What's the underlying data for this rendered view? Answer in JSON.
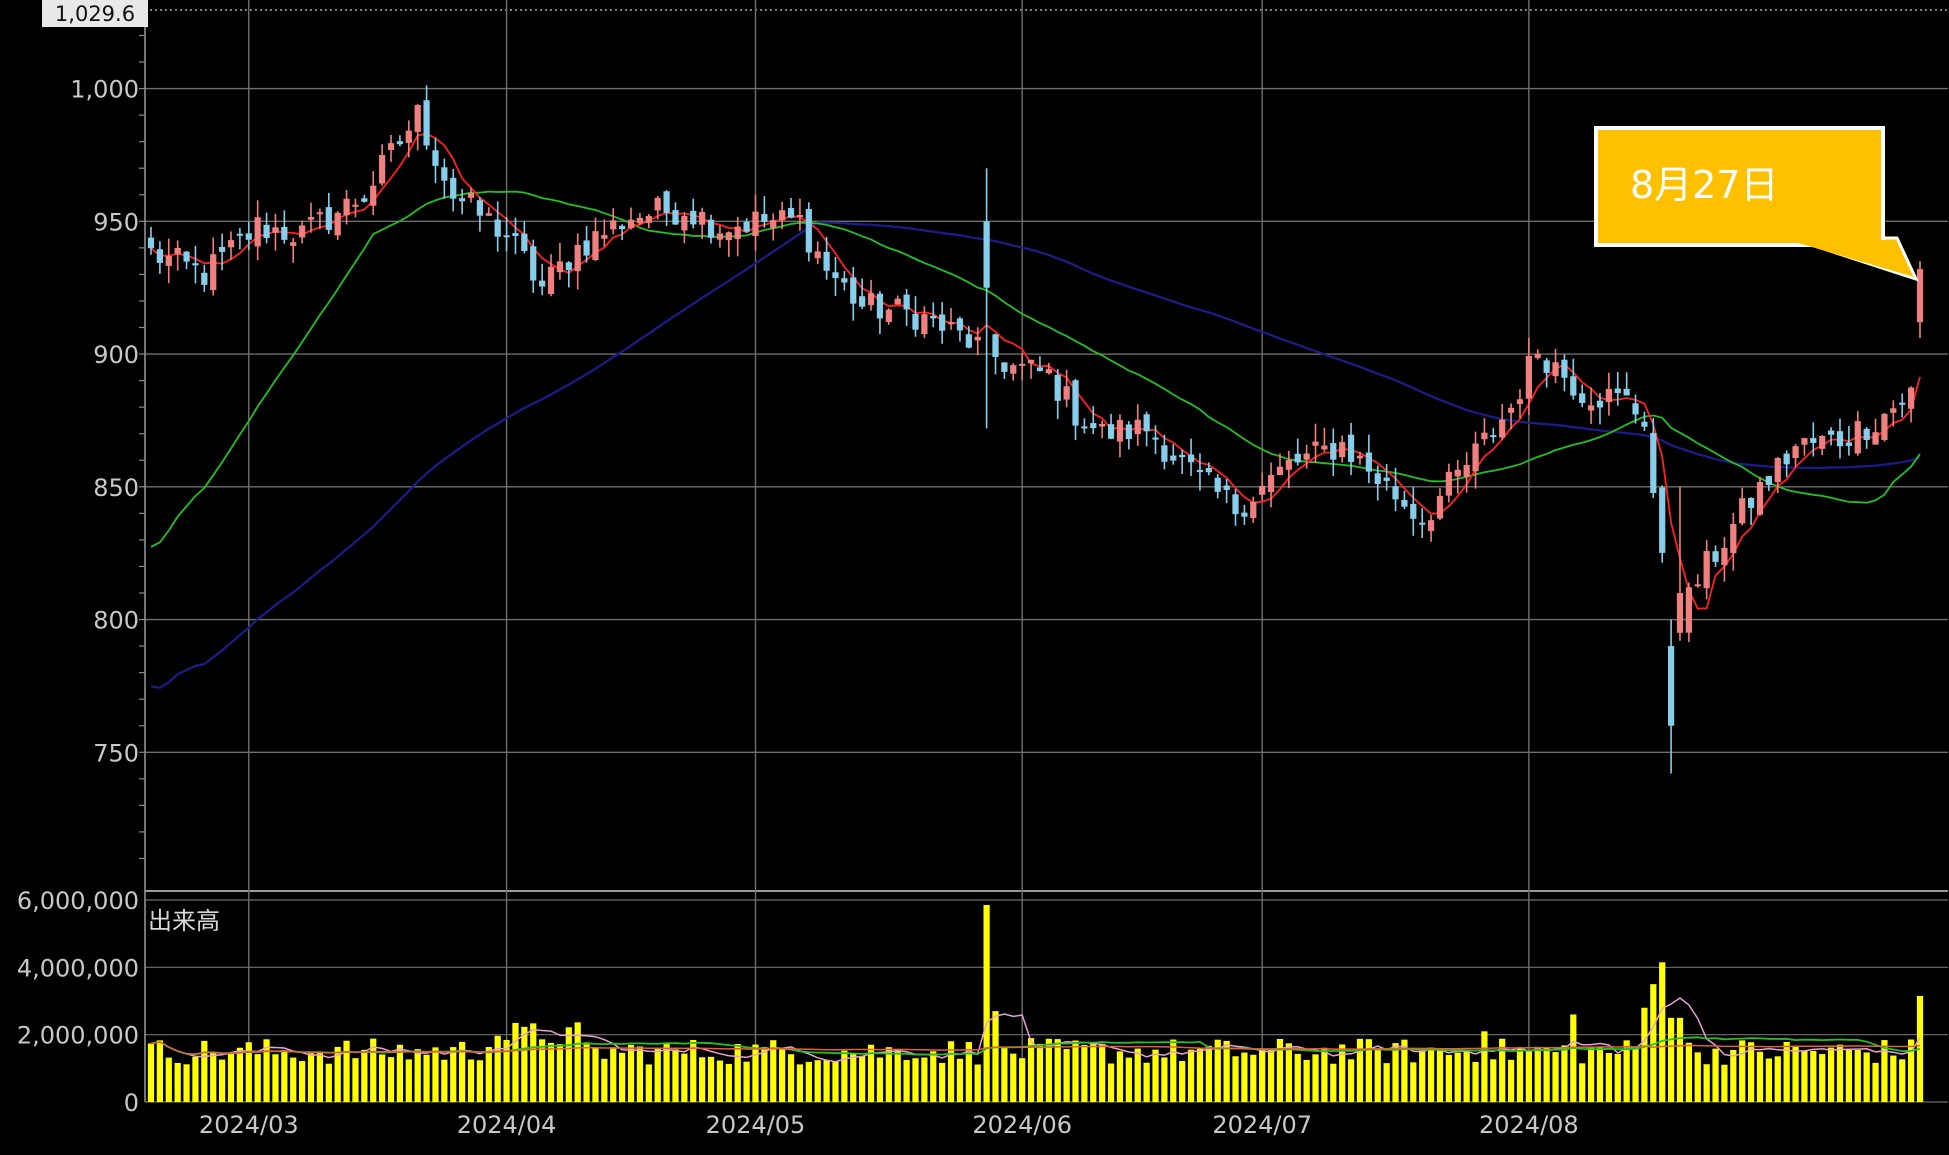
{
  "chart_data": {
    "type": "candlestick",
    "price_axis": {
      "ticks": [
        750,
        800,
        850,
        900,
        950,
        1000
      ],
      "tick_labels": [
        "750",
        "800",
        "850",
        "900",
        "950",
        "1,000"
      ],
      "top_value": 1029.6,
      "top_label": "1,029.6",
      "range": [
        700,
        1029.6
      ]
    },
    "volume_axis": {
      "label": "出来高",
      "ticks": [
        0,
        2000000,
        4000000,
        6000000
      ],
      "tick_labels": [
        "0",
        "2,000,000",
        "4,000,000",
        "6,000,000"
      ],
      "range": [
        0,
        6000000
      ]
    },
    "x_axis": {
      "month_labels": [
        {
          "label": "2024/03",
          "date": "2024-03-01"
        },
        {
          "label": "2024/04",
          "date": "2024-04-01"
        },
        {
          "label": "2024/05",
          "date": "2024-05-01"
        },
        {
          "label": "2024/06",
          "date": "2024-06-03"
        },
        {
          "label": "2024/07",
          "date": "2024-07-01"
        },
        {
          "label": "2024/08",
          "date": "2024-08-01"
        }
      ]
    },
    "callout": {
      "text": "8月27日",
      "date": "2024-08-27"
    },
    "colors": {
      "up": "#f08080",
      "down": "#87ceeb",
      "volume": "#ffff00",
      "ma_short": "#ff2020",
      "ma_mid": "#22c022",
      "ma_long": "#1c1c8c",
      "callout_bg": "#ffc000",
      "grid": "#6e6e6e"
    },
    "legend": "none",
    "grid": true
  }
}
